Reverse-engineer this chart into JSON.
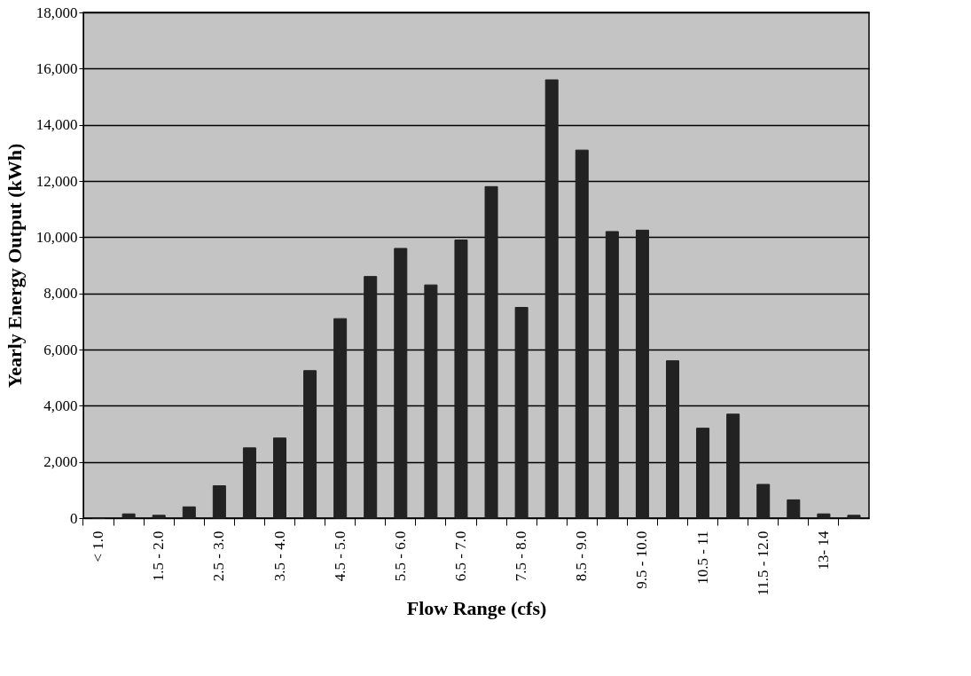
{
  "chart_data": {
    "type": "bar",
    "xlabel": "Flow Range (cfs)",
    "ylabel": "Yearly Energy Output (kWh)",
    "categories": [
      "< 1.0",
      null,
      "1.5 - 2.0",
      null,
      "2.5 - 3.0",
      null,
      "3.5 - 4.0",
      null,
      "4.5 - 5.0",
      null,
      "5.5 - 6.0",
      null,
      "6.5 - 7.0",
      null,
      "7.5 - 8.0",
      null,
      "8.5 - 9.0",
      null,
      "9.5 - 10.0",
      null,
      "10.5 - 11",
      null,
      "11.5 - 12.0",
      null,
      "13- 14",
      null
    ],
    "values": [
      0,
      150,
      100,
      400,
      1150,
      2500,
      2850,
      5250,
      7100,
      8600,
      9600,
      8300,
      9900,
      11800,
      7500,
      15600,
      13100,
      10200,
      10250,
      5600,
      3200,
      3700,
      1200,
      650,
      150,
      100
    ],
    "color": "#222222",
    "ylim": [
      0,
      18000
    ],
    "yticks": [
      {
        "value": 0,
        "label": "0"
      },
      {
        "value": 2000,
        "label": "2,000"
      },
      {
        "value": 4000,
        "label": "4,000"
      },
      {
        "value": 6000,
        "label": "6,000"
      },
      {
        "value": 8000,
        "label": "8,000"
      },
      {
        "value": 10000,
        "label": "10,000"
      },
      {
        "value": 12000,
        "label": "12,000"
      },
      {
        "value": 14000,
        "label": "14,000"
      },
      {
        "value": 16000,
        "label": "16,000"
      },
      {
        "value": 18000,
        "label": "18,000"
      }
    ],
    "grid": "y"
  }
}
